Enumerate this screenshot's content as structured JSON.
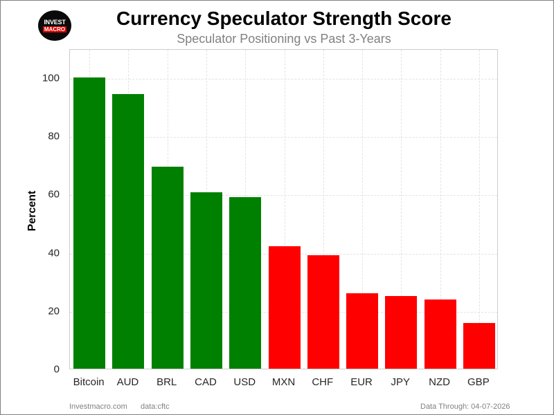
{
  "header": {
    "logo_line1": "INVEST",
    "logo_line2": "MACRO",
    "title": "Currency Speculator Strength Score",
    "subtitle": "Speculator Positioning vs Past 3-Years"
  },
  "footer": {
    "site": "Investmacro.com",
    "source": "data:cftc",
    "data_through": "Data Through: 04-07-2026"
  },
  "colors": {
    "positive": "#008000",
    "negative": "#ff0000"
  },
  "chart_data": {
    "type": "bar",
    "title": "Currency Speculator Strength Score",
    "subtitle": "Speculator Positioning vs Past 3-Years",
    "xlabel": "",
    "ylabel": "Percent",
    "ylim": [
      0,
      110
    ],
    "yticks": [
      0,
      20,
      40,
      60,
      80,
      100
    ],
    "grid": true,
    "legend": null,
    "categories": [
      "Bitcoin",
      "AUD",
      "BRL",
      "CAD",
      "USD",
      "MXN",
      "CHF",
      "EUR",
      "JPY",
      "NZD",
      "GBP"
    ],
    "values": [
      100,
      94.3,
      69.3,
      60.7,
      59.0,
      42.1,
      39.0,
      26.0,
      25.0,
      23.8,
      15.7
    ],
    "bar_colors": [
      "#008000",
      "#008000",
      "#008000",
      "#008000",
      "#008000",
      "#ff0000",
      "#ff0000",
      "#ff0000",
      "#ff0000",
      "#ff0000",
      "#ff0000"
    ]
  }
}
